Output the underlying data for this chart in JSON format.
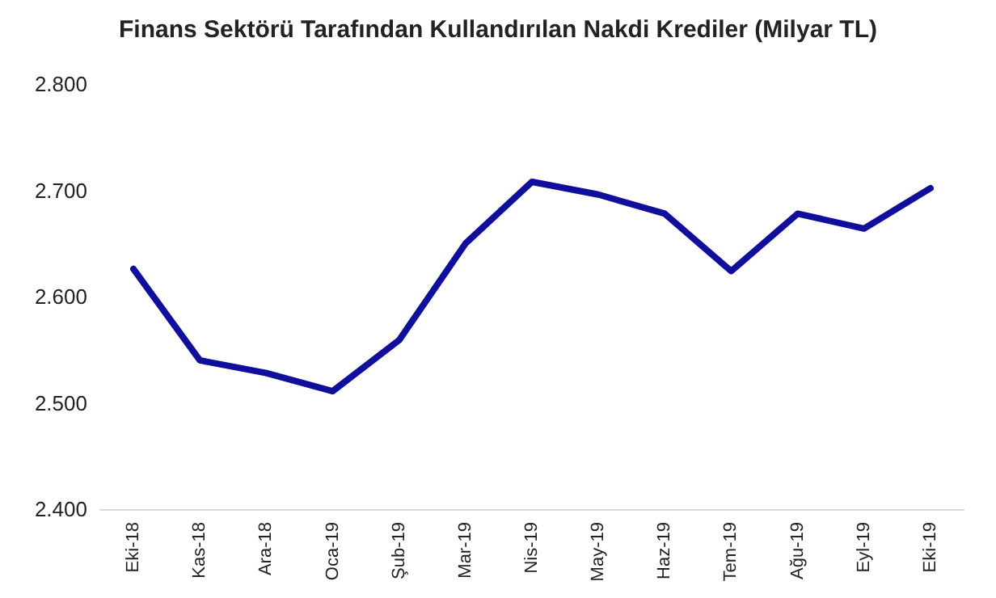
{
  "chart_data": {
    "type": "line",
    "title": "Finans Sektörü Tarafından Kullandırılan Nakdi Krediler (Milyar TL)",
    "categories": [
      "Eki-18",
      "Kas-18",
      "Ara-18",
      "Oca-19",
      "Şub-19",
      "Mar-19",
      "Nis-19",
      "May-19",
      "Haz-19",
      "Tem-19",
      "Ağu-19",
      "Eyl-19",
      "Eki-19"
    ],
    "series": [
      {
        "color": "#0f0f9c",
        "values": [
          2626,
          2540,
          2528,
          2511,
          2559,
          2650,
          2708,
          2696,
          2678,
          2624,
          2678,
          2664,
          2702
        ]
      }
    ],
    "ylim": [
      2400,
      2800
    ],
    "yticks": [
      {
        "value": 2400,
        "label": "2.400"
      },
      {
        "value": 2500,
        "label": "2.500"
      },
      {
        "value": 2600,
        "label": "2.600"
      },
      {
        "value": 2700,
        "label": "2.700"
      },
      {
        "value": 2800,
        "label": "2.800"
      }
    ],
    "grid": false,
    "marker": "none",
    "line_style": "solid"
  }
}
